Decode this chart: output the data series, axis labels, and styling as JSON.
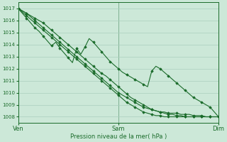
{
  "xlabel": "Pression niveau de la mer( hPa )",
  "xtick_labels": [
    "Ven",
    "Sam",
    "Dim"
  ],
  "xtick_positions": [
    0,
    48,
    96
  ],
  "ylim": [
    1007.5,
    1017.5
  ],
  "yticks": [
    1008,
    1009,
    1010,
    1011,
    1012,
    1013,
    1014,
    1015,
    1016,
    1017
  ],
  "xlim": [
    0,
    96
  ],
  "bg_color": "#cce8d8",
  "grid_color": "#aacfbe",
  "line_color": "#1a6b2a",
  "marker": "D",
  "marker_size": 1.8,
  "line_width": 0.8,
  "s0": [
    1017.0,
    1016.8,
    1016.6,
    1016.4,
    1016.2,
    1016.0,
    1015.8,
    1015.5,
    1015.2,
    1014.9,
    1014.6,
    1014.3,
    1014.0,
    1013.7,
    1013.4,
    1013.1,
    1012.8,
    1012.5,
    1012.2,
    1011.9,
    1011.6,
    1011.4,
    1011.1,
    1010.8,
    1010.5,
    1010.2,
    1009.9,
    1009.6,
    1009.4,
    1009.2,
    1009.0,
    1008.8,
    1008.6,
    1008.5,
    1008.4,
    1008.3,
    1008.2,
    1008.2,
    1008.1,
    1008.1,
    1008.0,
    1008.0,
    1008.0,
    1008.0,
    1008.0,
    1008.0,
    1008.0,
    1008.0,
    1008.0
  ],
  "s1": [
    1017.0,
    1016.7,
    1016.4,
    1016.1,
    1015.8,
    1015.5,
    1015.2,
    1014.9,
    1014.6,
    1014.3,
    1014.0,
    1013.7,
    1013.4,
    1013.1,
    1012.8,
    1012.5,
    1012.2,
    1011.9,
    1011.6,
    1011.3,
    1011.0,
    1010.7,
    1010.4,
    1010.1,
    1009.8,
    1009.5,
    1009.2,
    1009.0,
    1008.8,
    1008.6,
    1008.4,
    1008.3,
    1008.2,
    1008.1,
    1008.1,
    1008.0,
    1008.0,
    1008.0,
    1008.0,
    1008.0,
    1008.0,
    1008.0,
    1008.0,
    1008.0,
    1008.0,
    1008.0,
    1008.0,
    1008.0,
    1008.0
  ],
  "s2": [
    1017.0,
    1016.8,
    1016.6,
    1016.3,
    1016.0,
    1015.7,
    1015.4,
    1015.1,
    1014.8,
    1014.5,
    1014.2,
    1013.9,
    1013.6,
    1013.3,
    1013.0,
    1012.7,
    1012.4,
    1012.1,
    1011.8,
    1011.5,
    1011.2,
    1010.9,
    1010.6,
    1010.3,
    1010.0,
    1009.8,
    1009.6,
    1009.4,
    1009.2,
    1009.0,
    1008.8,
    1008.7,
    1008.6,
    1008.5,
    1008.4,
    1008.4,
    1008.3,
    1008.3,
    1008.3,
    1008.2,
    1008.2,
    1008.2,
    1008.1,
    1008.1,
    1008.1,
    1008.0,
    1008.0,
    1008.0,
    1008.0
  ],
  "s3_noisy": [
    1017.0,
    1016.6,
    1016.2,
    1015.8,
    1015.4,
    1015.1,
    1014.7,
    1014.3,
    1013.9,
    1014.2,
    1013.7,
    1013.3,
    1012.9,
    1012.5,
    1013.7,
    1013.2,
    1013.8,
    1014.5,
    1014.2,
    1013.8,
    1013.4,
    1013.0,
    1012.6,
    1012.3,
    1012.0,
    1011.7,
    1011.5,
    1011.3,
    1011.1,
    1010.9,
    1010.7,
    1010.5,
    1011.8,
    1012.2,
    1012.0,
    1011.7,
    1011.4,
    1011.1,
    1010.8,
    1010.5,
    1010.2,
    1009.9,
    1009.6,
    1009.4,
    1009.2,
    1009.0,
    1008.8,
    1008.4,
    1008.0
  ]
}
